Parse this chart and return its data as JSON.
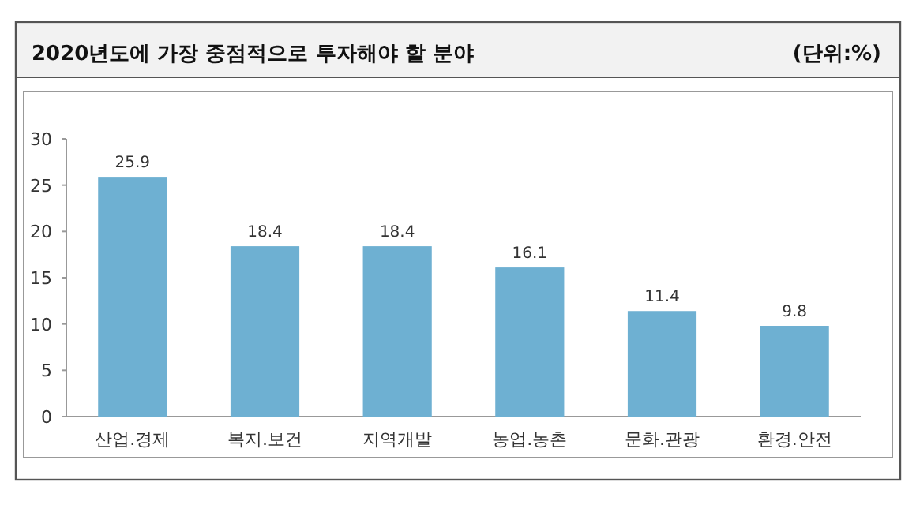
{
  "chart_data": {
    "type": "bar",
    "title": "2020년도에 가장 중점적으로 투자해야 할 분야",
    "subtitle": "(단위:%)",
    "categories": [
      "산업.경제",
      "복지.보건",
      "지역개발",
      "농업.농촌",
      "문화.관광",
      "환경.안전"
    ],
    "values": [
      25.9,
      18.4,
      18.4,
      16.1,
      11.4,
      9.8
    ],
    "color": "#6eb0d2",
    "ylim": [
      0,
      30
    ],
    "yticks": [
      0,
      5,
      10,
      15,
      20,
      25,
      30
    ],
    "data_labels": true,
    "grid": false
  }
}
